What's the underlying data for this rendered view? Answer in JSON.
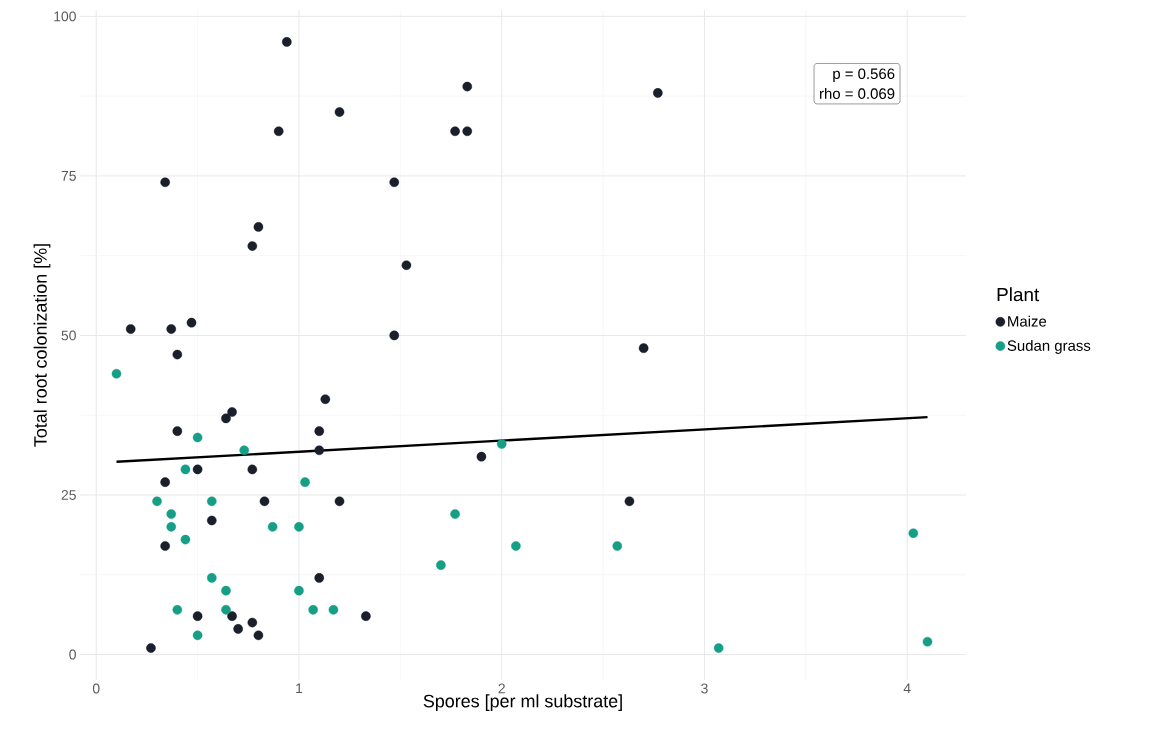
{
  "chart_data": {
    "type": "scatter",
    "xlabel": "Spores [per ml substrate]",
    "ylabel": "Total root colonization [%]",
    "legend_title": "Plant",
    "annotations": [
      "p = 0.566",
      "rho = 0.069"
    ],
    "series": [
      {
        "name": "Maize",
        "color": "#1a1f2b",
        "marker": "circle",
        "x": [
          0.17,
          0.37,
          0.47,
          0.4,
          0.4,
          0.67,
          0.64,
          1.13,
          1.1,
          1.1,
          0.5,
          0.77,
          0.34,
          0.83,
          1.2,
          0.57,
          0.34,
          1.1,
          0.5,
          0.67,
          0.77,
          0.7,
          0.8,
          1.33,
          0.27,
          0.94,
          0.9,
          1.2,
          1.47,
          0.8,
          0.77,
          1.53,
          1.77,
          1.83,
          1.83,
          2.77,
          0.34,
          1.47,
          2.7,
          1.9,
          2.63
        ],
        "values": [
          51,
          51,
          52,
          47,
          35,
          38,
          37,
          40,
          35,
          32,
          29,
          29,
          27,
          24,
          24,
          21,
          17,
          12,
          6,
          6,
          5,
          4,
          3,
          6,
          1,
          96,
          82,
          85,
          74,
          67,
          64,
          61,
          82,
          82,
          89,
          88,
          74,
          50,
          48,
          31,
          24
        ]
      },
      {
        "name": "Sudan grass",
        "color": "#179e86",
        "marker": "circle",
        "x": [
          0.1,
          0.5,
          0.73,
          0.44,
          1.03,
          0.3,
          0.57,
          0.37,
          0.37,
          0.87,
          1.0,
          0.44,
          0.57,
          0.64,
          1.0,
          0.4,
          0.64,
          1.07,
          1.17,
          0.5,
          2.0,
          1.77,
          2.07,
          2.57,
          1.7,
          3.07,
          4.03,
          4.1
        ],
        "values": [
          44,
          34,
          32,
          29,
          27,
          24,
          24,
          22,
          20,
          20,
          20,
          18,
          12,
          10,
          10,
          7,
          7,
          7,
          7,
          3,
          33,
          22,
          17,
          17,
          14,
          1,
          19,
          2
        ]
      },
      {
        "type": "line",
        "color": "#000000",
        "marker": "none",
        "x": [
          0.1,
          4.1
        ],
        "values": [
          30.2,
          37.2
        ]
      }
    ],
    "xlim": [
      -0.08,
      4.29
    ],
    "ylim": [
      -4,
      101
    ],
    "xticks": [
      0,
      1,
      2,
      3,
      4
    ],
    "yticks": [
      0,
      25,
      50,
      75,
      100
    ],
    "grid": true,
    "legend": "right"
  }
}
